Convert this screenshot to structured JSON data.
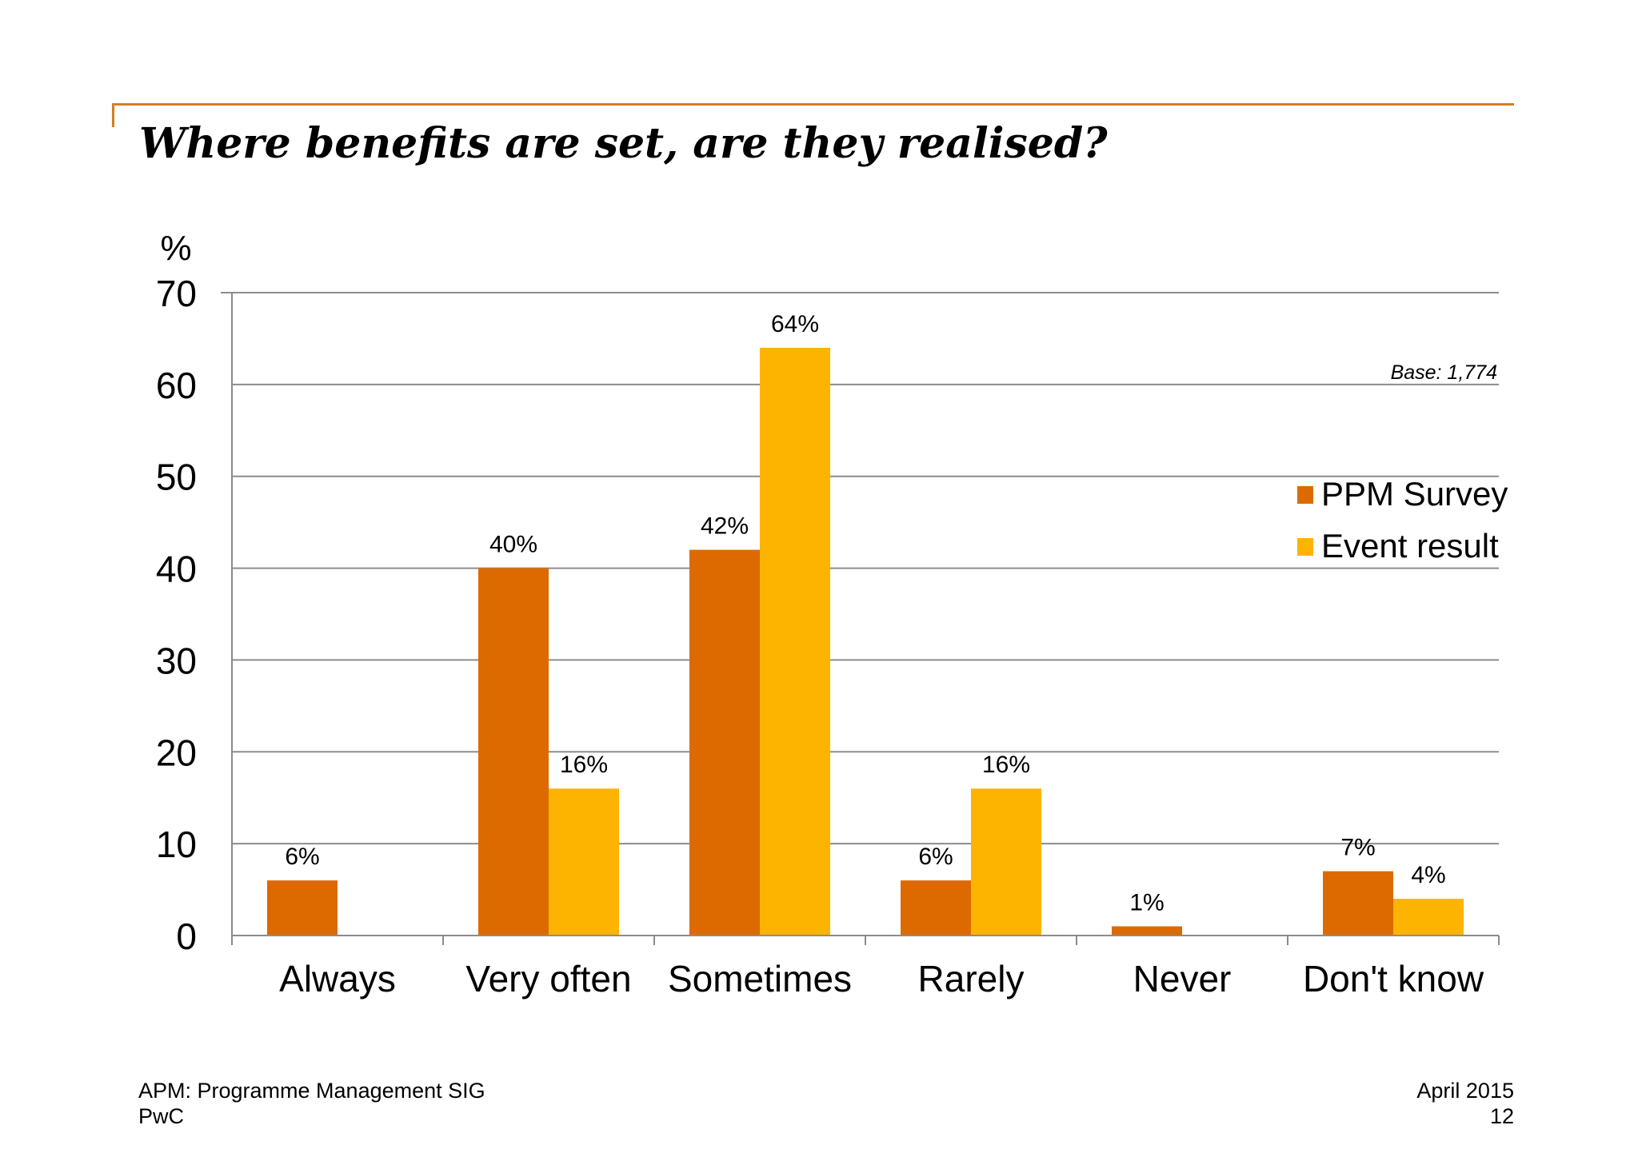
{
  "title": "Where benefits are set, are they realised?",
  "colors": {
    "accent": "#d27f23",
    "ppm": "#dd6a00",
    "event": "#fdb400",
    "grid": "#8c8c8c"
  },
  "chart_data": {
    "type": "bar",
    "ylabel": "%",
    "ylim": [
      0,
      70
    ],
    "yticks": [
      "0",
      "10",
      "20",
      "30",
      "40",
      "50",
      "60",
      "70"
    ],
    "grid": true,
    "legend_position": "right",
    "categories": [
      "Always",
      "Very often",
      "Sometimes",
      "Rarely",
      "Never",
      "Don't know"
    ],
    "series": [
      {
        "name": "PPM Survey",
        "color": "#dd6a00",
        "values": [
          6,
          40,
          42,
          6,
          1,
          7
        ],
        "labels": [
          "6%",
          "40%",
          "42%",
          "6%",
          "1%",
          "7%"
        ]
      },
      {
        "name": "Event result",
        "color": "#fdb400",
        "values": [
          null,
          16,
          64,
          16,
          null,
          4
        ],
        "labels": [
          "",
          "16%",
          "64%",
          "16%",
          "",
          "4%"
        ]
      }
    ],
    "annotation": "Base: 1,774"
  },
  "footer": {
    "left_line1": "APM: Programme Management SIG",
    "left_line2": "PwC",
    "right_line1": "April 2015",
    "right_line2": "12"
  }
}
